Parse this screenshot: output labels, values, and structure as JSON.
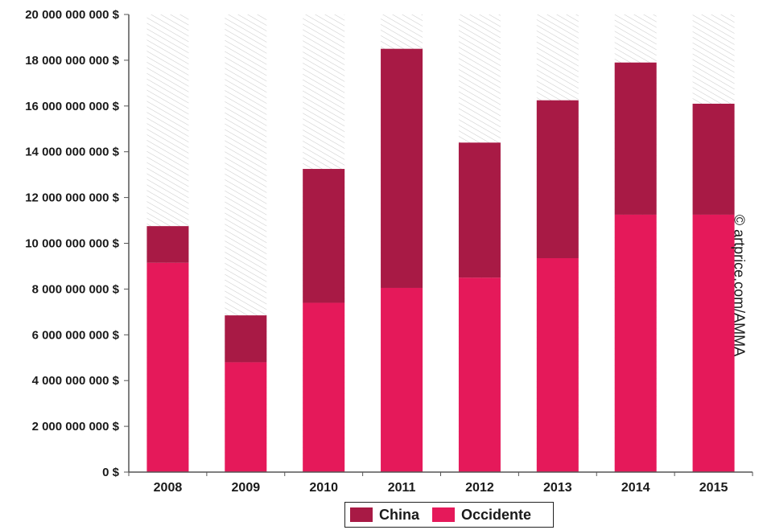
{
  "chart_data": {
    "type": "bar",
    "stacked": true,
    "categories": [
      "2008",
      "2009",
      "2010",
      "2011",
      "2012",
      "2013",
      "2014",
      "2015"
    ],
    "series": [
      {
        "name": "Occidente",
        "values": [
          9150000000,
          4800000000,
          7400000000,
          8050000000,
          8500000000,
          9350000000,
          11250000000,
          11250000000
        ]
      },
      {
        "name": "China",
        "values": [
          1600000000,
          2050000000,
          5850000000,
          10450000000,
          5900000000,
          6900000000,
          6650000000,
          4850000000
        ]
      }
    ],
    "colors": {
      "Occidente": "#e5195a",
      "China": "#a81a45",
      "background_hatch": "#c8c8c8"
    },
    "ylim": [
      0,
      20000000000
    ],
    "yticks": [
      0,
      2000000000,
      4000000000,
      6000000000,
      8000000000,
      10000000000,
      12000000000,
      14000000000,
      16000000000,
      18000000000,
      20000000000
    ],
    "ytick_labels": [
      "0 $",
      "2 000 000 000 $",
      "4 000 000 000 $",
      "6 000 000 000 $",
      "8 000 000 000 $",
      "10 000 000 000 $",
      "12 000 000 000 $",
      "14 000 000 000 $",
      "16 000 000 000 $",
      "18 000 000 000 $",
      "20 000 000 000 $"
    ],
    "title": "",
    "xlabel": "",
    "ylabel": "",
    "grid": false,
    "legend_position": "bottom-center",
    "legend": [
      {
        "label": "China",
        "color": "#a81a45"
      },
      {
        "label": "Occidente",
        "color": "#e5195a"
      }
    ],
    "credit": "© artprice.com/AMMA"
  }
}
